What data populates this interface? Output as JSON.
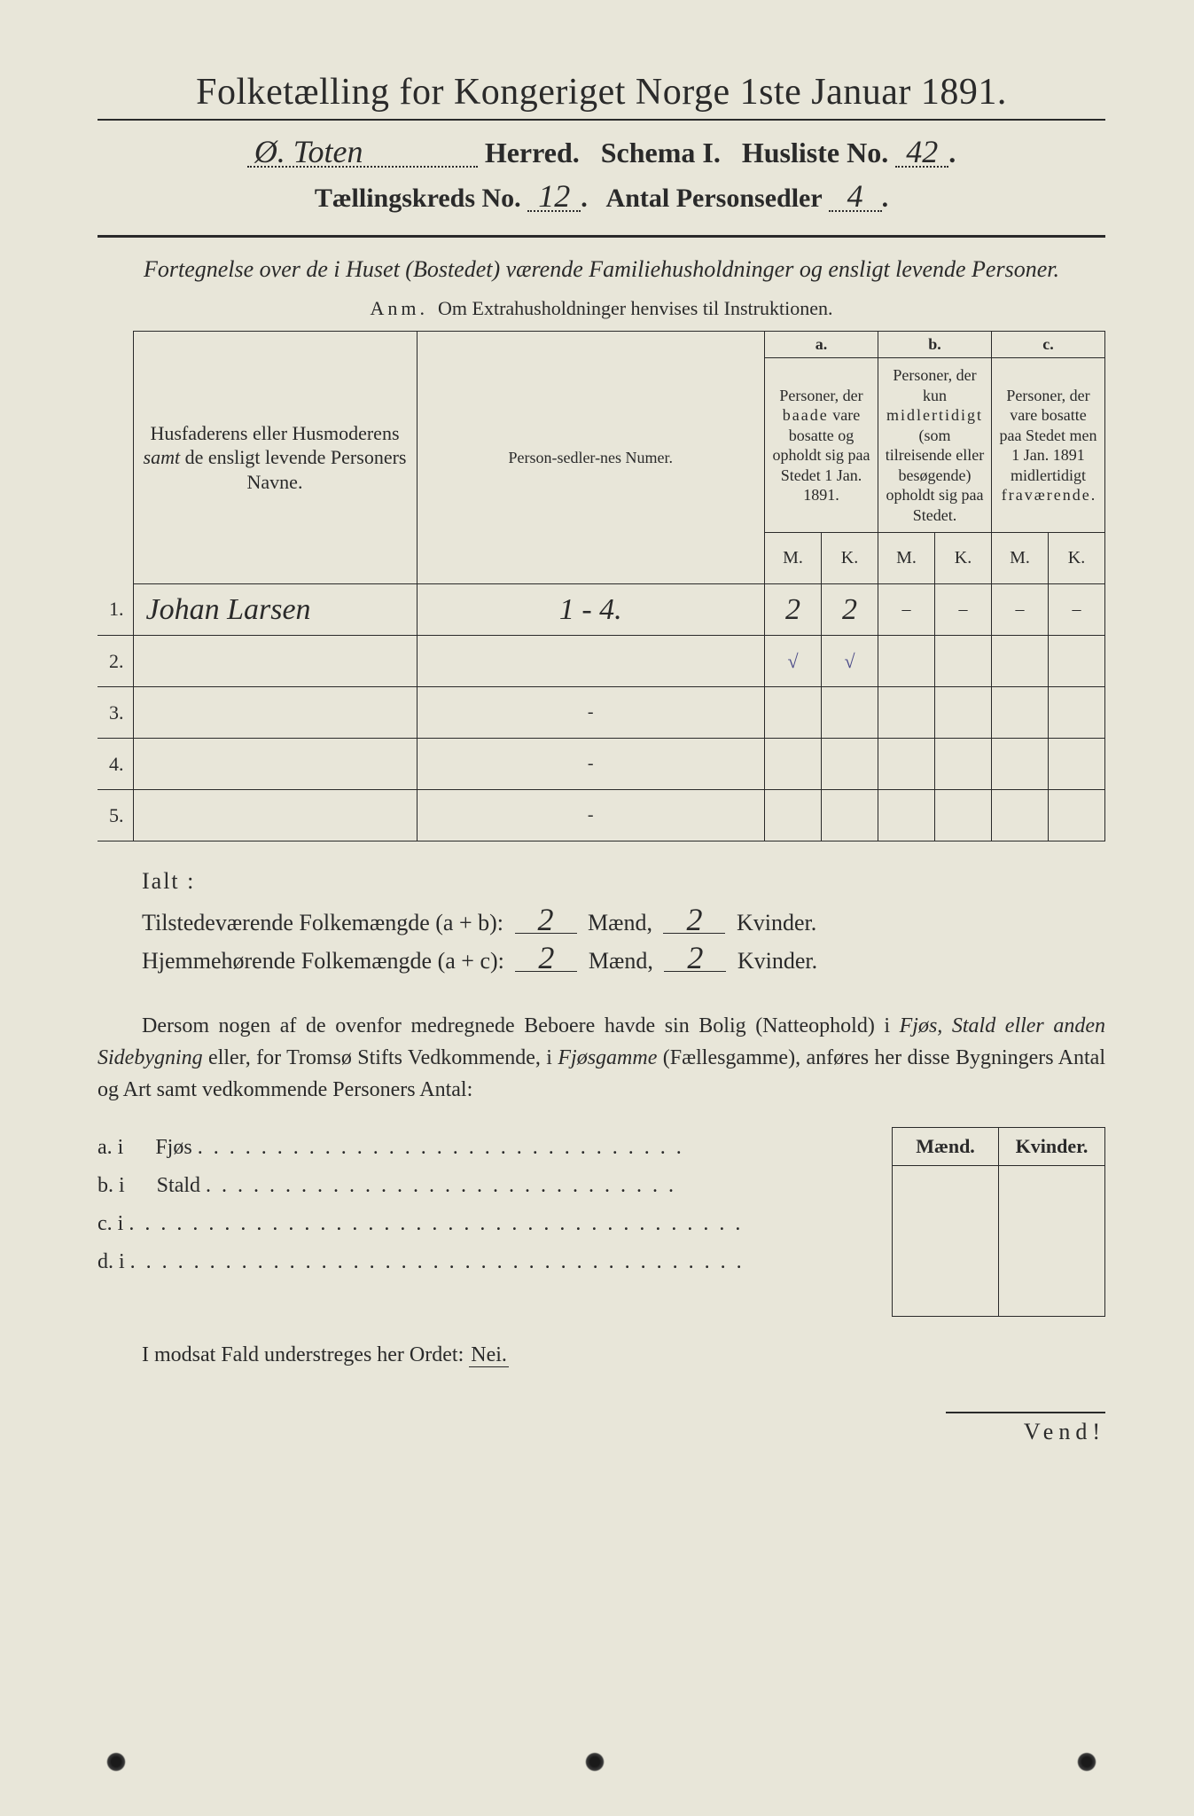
{
  "header": {
    "title": "Folketælling for Kongeriget Norge 1ste Januar 1891.",
    "herred_value": "Ø. Toten",
    "herred_label": "Herred.",
    "schema_label": "Schema I.",
    "husliste_label": "Husliste No.",
    "husliste_value": "42",
    "kreds_label": "Tællingskreds No.",
    "kreds_value": "12",
    "antal_label": "Antal Personsedler",
    "antal_value": "4"
  },
  "subtitle": "Fortegnelse over de i Huset (Bostedet) værende Familiehusholdninger og ensligt levende Personer.",
  "anm": {
    "label": "Anm.",
    "text": "Om Extrahusholdninger henvises til Instruktionen."
  },
  "table": {
    "col_name": "Husfaderens eller Husmoderens samt de ensligt levende Personers Navne.",
    "col_num": "Person-sedler-nes Numer.",
    "col_a_top": "a.",
    "col_a": "Personer, der baade vare bosatte og opholdt sig paa Stedet 1 Jan. 1891.",
    "col_b_top": "b.",
    "col_b": "Personer, der kun midlertidigt (som tilreisende eller besøgende) opholdt sig paa Stedet.",
    "col_c_top": "c.",
    "col_c": "Personer, der vare bosatte paa Stedet men 1 Jan. 1891 midlertidigt fraværende.",
    "m": "M.",
    "k": "K.",
    "rows": [
      {
        "n": "1.",
        "name": "Johan Larsen",
        "num": "1 - 4.",
        "am": "2",
        "ak": "2",
        "bm": "–",
        "bk": "–",
        "cm": "–",
        "ck": "–",
        "chk_am": "√",
        "chk_ak": "√"
      },
      {
        "n": "2.",
        "name": "",
        "num": "",
        "am": "",
        "ak": "",
        "bm": "",
        "bk": "",
        "cm": "",
        "ck": ""
      },
      {
        "n": "3.",
        "name": "",
        "num": "-",
        "am": "",
        "ak": "",
        "bm": "",
        "bk": "",
        "cm": "",
        "ck": ""
      },
      {
        "n": "4.",
        "name": "",
        "num": "-",
        "am": "",
        "ak": "",
        "bm": "",
        "bk": "",
        "cm": "",
        "ck": ""
      },
      {
        "n": "5.",
        "name": "",
        "num": "-",
        "am": "",
        "ak": "",
        "bm": "",
        "bk": "",
        "cm": "",
        "ck": ""
      }
    ]
  },
  "ialt": {
    "label": "Ialt :",
    "row1_a": "Tilstedeværende Folkemængde (a + b):",
    "row2_a": "Hjemmehørende Folkemængde (a + c):",
    "maend": "Mænd,",
    "kvinder": "Kvinder.",
    "v1m": "2",
    "v1k": "2",
    "v2m": "2",
    "v2k": "2"
  },
  "paragraph": {
    "text1": "Dersom nogen af de ovenfor medregnede Beboere havde sin Bolig (Natteophold) i ",
    "ital1": "Fjøs, Stald eller anden Sidebygning",
    "text2": " eller, for Tromsø Stifts Vedkommende, i ",
    "ital2": "Fjøsgamme",
    "text3": " (Fællesgamme), anføres her disse Bygningers Antal og Art samt vedkommende Personers Antal:"
  },
  "buildings": {
    "maend": "Mænd.",
    "kvinder": "Kvinder.",
    "rows": [
      {
        "l": "a.  i",
        "t": "Fjøs",
        "dots": ". . . . . . . . . . . . . . . . . . . . . . . . . . . . . . ."
      },
      {
        "l": "b.  i",
        "t": "Stald",
        "dots": " . . . . . . . . . . . . . . . . . . . . . . . . . . . . . ."
      },
      {
        "l": "c.  i",
        "t": "",
        "dots": ". . . . . . . . . . . . . . . . . . . . . . . . . . . . . . . . . . . . . . ."
      },
      {
        "l": "d.  i",
        "t": "",
        "dots": ". . . . . . . . . . . . . . . . . . . . . . . . . . . . . . . . . . . . . . ."
      }
    ]
  },
  "nei": {
    "text": "I modsat Fald understreges her Ordet: ",
    "word": "Nei."
  },
  "vend": "Vend!",
  "colors": {
    "paper": "#e8e6d9",
    "ink": "#2a2a2a",
    "pencil": "#4a4a88",
    "background": "#1a1a1a"
  }
}
